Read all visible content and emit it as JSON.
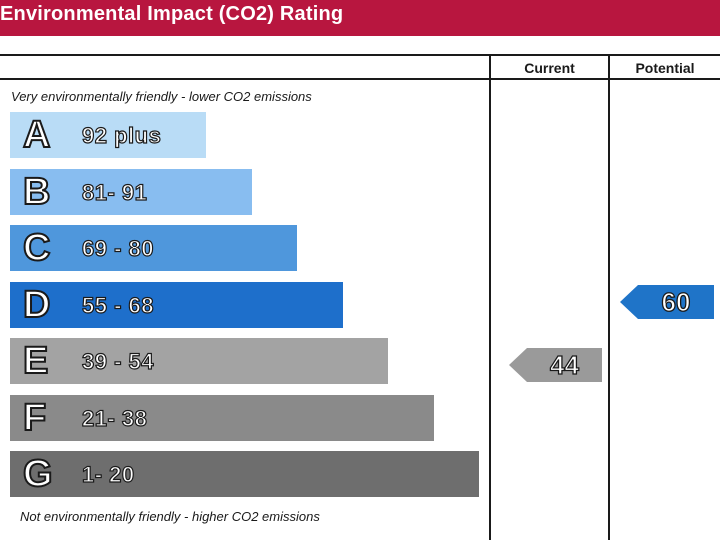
{
  "title": "Environmental Impact (CO2) Rating",
  "columns": {
    "current": "Current",
    "potential": "Potential"
  },
  "notes": {
    "top": "Very environmentally friendly - lower CO2 emissions",
    "bottom": "Not environmentally friendly - higher CO2 emissions"
  },
  "colors": {
    "title_bar": "#b8163f",
    "current_arrow": "#9a9a9a",
    "potential_arrow": "#1f74c8"
  },
  "chart_data": {
    "type": "bar",
    "title": "Environmental Impact (CO2) Rating",
    "bands": [
      {
        "letter": "A",
        "range": "92 plus",
        "min": 92,
        "max": 100,
        "color": "#b9dcf6"
      },
      {
        "letter": "B",
        "range": "81- 91",
        "min": 81,
        "max": 91,
        "color": "#88bdf0"
      },
      {
        "letter": "C",
        "range": "69 - 80",
        "min": 69,
        "max": 80,
        "color": "#4f97dc"
      },
      {
        "letter": "D",
        "range": "55 - 68",
        "min": 55,
        "max": 68,
        "color": "#1e6fcb"
      },
      {
        "letter": "E",
        "range": "39 - 54",
        "min": 39,
        "max": 54,
        "color": "#a3a3a3"
      },
      {
        "letter": "F",
        "range": "21- 38",
        "min": 21,
        "max": 38,
        "color": "#8a8a8a"
      },
      {
        "letter": "G",
        "range": "1- 20",
        "min": 1,
        "max": 20,
        "color": "#6e6e6e"
      }
    ],
    "current": {
      "value": 44,
      "band": "E",
      "label": "44"
    },
    "potential": {
      "value": 60,
      "band": "D",
      "label": "60"
    }
  }
}
